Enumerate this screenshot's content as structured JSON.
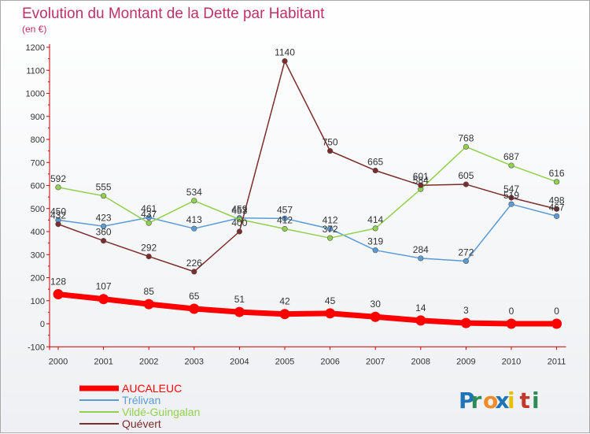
{
  "chart_data": {
    "type": "line",
    "title": "Evolution du Montant de la Dette par Habitant",
    "subtitle": "(en €)",
    "x": [
      "2000",
      "2001",
      "2002",
      "2003",
      "2004",
      "2005",
      "2006",
      "2007",
      "2008",
      "2009",
      "2010",
      "2011"
    ],
    "yticks": [
      -100,
      0,
      100,
      200,
      300,
      400,
      500,
      600,
      700,
      800,
      900,
      1000,
      1100,
      1200
    ],
    "ylim": [
      -100,
      1200
    ],
    "grid": false,
    "legend_position": "bottom-left",
    "series": [
      {
        "name": "AUCALEUC",
        "color": "#ff0000",
        "values": [
          128,
          107,
          85,
          65,
          51,
          42,
          45,
          30,
          14,
          3,
          0,
          0
        ],
        "labels": [
          "128",
          "107",
          "85",
          "65",
          "51",
          "42",
          "45",
          "30",
          "14",
          "3",
          "0",
          "0"
        ]
      },
      {
        "name": "Trélivan",
        "color": "#5b9bd5",
        "values": [
          450,
          423,
          461,
          413,
          459,
          457,
          412,
          319,
          284,
          272,
          519,
          467
        ],
        "labels": [
          "450",
          "423",
          "461",
          "413",
          "459",
          "457",
          "412",
          "319",
          "284",
          "272",
          "519",
          "467"
        ]
      },
      {
        "name": "Vildé-Guingalan",
        "color": "#92d050",
        "values": [
          592,
          555,
          437,
          534,
          453,
          412,
          372,
          414,
          584,
          768,
          687,
          616
        ],
        "labels": [
          "592",
          "555",
          "437",
          "534",
          "453",
          "412",
          "372",
          "414",
          "584",
          "768",
          "687",
          "616"
        ]
      },
      {
        "name": "Quévert",
        "color": "#7b2c2c",
        "values": [
          432,
          360,
          292,
          226,
          400,
          1140,
          750,
          665,
          601,
          605,
          547,
          498
        ],
        "labels": [
          "432",
          "360",
          "292",
          "226",
          "400",
          "1140",
          "750",
          "665",
          "601",
          "605",
          "547",
          "498"
        ]
      }
    ]
  },
  "branding": {
    "logo_letters": [
      "P",
      "r",
      "o",
      "x",
      "i",
      "t",
      "i"
    ],
    "logo_colors": [
      "#1f73b7",
      "#2e8b57",
      "#f28c28",
      "#1f73b7",
      "#e8c000",
      "#c0392b",
      "#2e8b57"
    ]
  }
}
